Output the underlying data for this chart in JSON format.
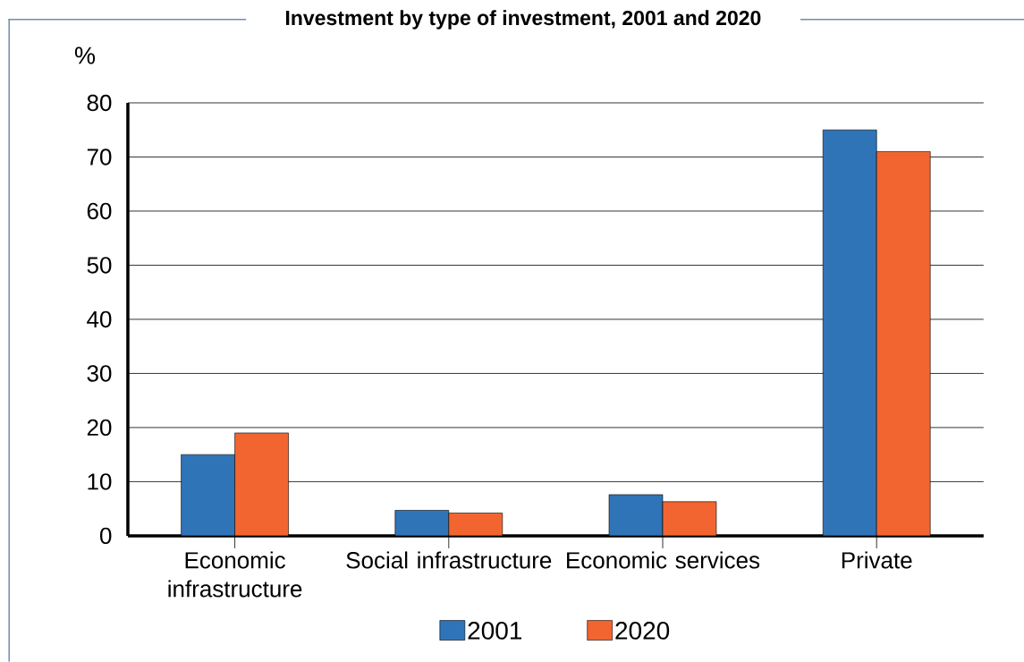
{
  "chart_data": {
    "type": "bar",
    "title": "Investment by type of investment, 2001 and 2020",
    "ylabel": "%",
    "categories": [
      "Economic infrastructure",
      "Social infrastructure",
      "Economic services",
      "Private"
    ],
    "series": [
      {
        "name": "2001",
        "color": "#2f74b7",
        "values": [
          15,
          4.7,
          7.6,
          75
        ]
      },
      {
        "name": "2020",
        "color": "#f26531",
        "values": [
          19,
          4.2,
          6.3,
          71
        ]
      }
    ],
    "ylim": [
      0,
      80
    ],
    "yticks": [
      0,
      10,
      20,
      30,
      40,
      50,
      60,
      70,
      80
    ],
    "grid": "y",
    "legend": "bottom"
  }
}
